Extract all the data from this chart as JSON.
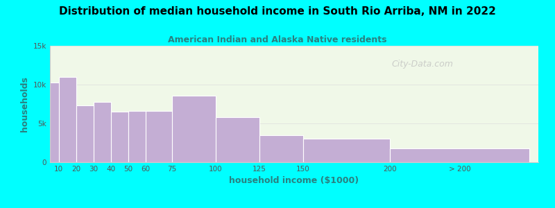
{
  "title": "Distribution of median household income in South Rio Arriba, NM in 2022",
  "subtitle": "American Indian and Alaska Native residents",
  "xlabel": "household income ($1000)",
  "ylabel": "households",
  "bg_outer": "#00FFFF",
  "bg_plot_top": "#e8f5e0",
  "bg_plot_bottom": "#ffffff",
  "bar_color": "#C4AED4",
  "bar_edge_color": "#ffffff",
  "title_color": "#000000",
  "subtitle_color": "#2a8080",
  "axis_label_color": "#2a8080",
  "tick_label_color": "#555555",
  "watermark": "City-Data.com",
  "categories": [
    "10",
    "20",
    "30",
    "40",
    "50",
    "60",
    "75",
    "100",
    "125",
    "150",
    "200",
    "> 200"
  ],
  "left_edges": [
    5,
    10,
    20,
    30,
    40,
    50,
    60,
    75,
    100,
    125,
    150,
    200
  ],
  "widths": [
    5,
    10,
    10,
    10,
    10,
    10,
    15,
    25,
    25,
    25,
    50,
    80
  ],
  "values": [
    10300,
    11000,
    7300,
    7800,
    6500,
    6600,
    6600,
    8600,
    5800,
    3500,
    3000,
    1800
  ],
  "ylim": [
    0,
    15000
  ],
  "yticks": [
    0,
    5000,
    10000,
    15000
  ],
  "ytick_labels": [
    "0",
    "5k",
    "10k",
    "15k"
  ],
  "xtick_positions": [
    10,
    20,
    30,
    40,
    50,
    60,
    75,
    100,
    125,
    150,
    200,
    240
  ],
  "xtick_labels": [
    "10",
    "20",
    "30",
    "40",
    "50",
    "60",
    "75",
    "100",
    "125",
    "150",
    "200",
    "> 200"
  ],
  "xlim": [
    5,
    285
  ]
}
